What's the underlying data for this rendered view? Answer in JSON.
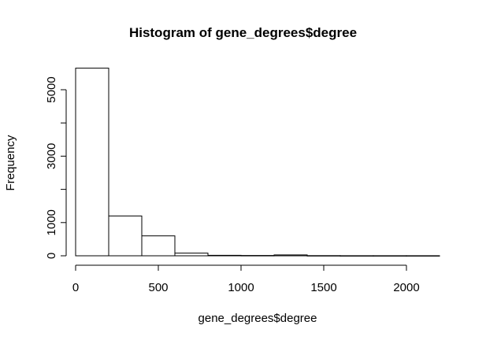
{
  "chart_data": {
    "type": "bar",
    "title": "Histogram of gene_degrees$degree",
    "xlabel": "gene_degrees$degree",
    "ylabel": "Frequency",
    "bins": [
      {
        "start": 0,
        "end": 200,
        "count": 5650
      },
      {
        "start": 200,
        "end": 400,
        "count": 1200
      },
      {
        "start": 400,
        "end": 600,
        "count": 600
      },
      {
        "start": 600,
        "end": 800,
        "count": 80
      },
      {
        "start": 800,
        "end": 1000,
        "count": 15
      },
      {
        "start": 1000,
        "end": 1200,
        "count": 10
      },
      {
        "start": 1200,
        "end": 1400,
        "count": 25
      },
      {
        "start": 1400,
        "end": 1600,
        "count": 5
      },
      {
        "start": 1600,
        "end": 1800,
        "count": 3
      },
      {
        "start": 1800,
        "end": 2000,
        "count": 2
      },
      {
        "start": 2000,
        "end": 2200,
        "count": 2
      }
    ],
    "x_ticks": [
      0,
      500,
      1000,
      1500,
      2000
    ],
    "y_ticks": [
      0,
      1000,
      2000,
      3000,
      4000,
      5000
    ],
    "y_tick_labels": [
      "0",
      "1000",
      "",
      "3000",
      "",
      "5000"
    ],
    "xlim": [
      0,
      2200
    ],
    "ylim": [
      0,
      5650
    ],
    "grid": false,
    "legend": "none",
    "colors": {
      "bar_fill": "#ffffff",
      "bar_stroke": "#000000"
    }
  }
}
